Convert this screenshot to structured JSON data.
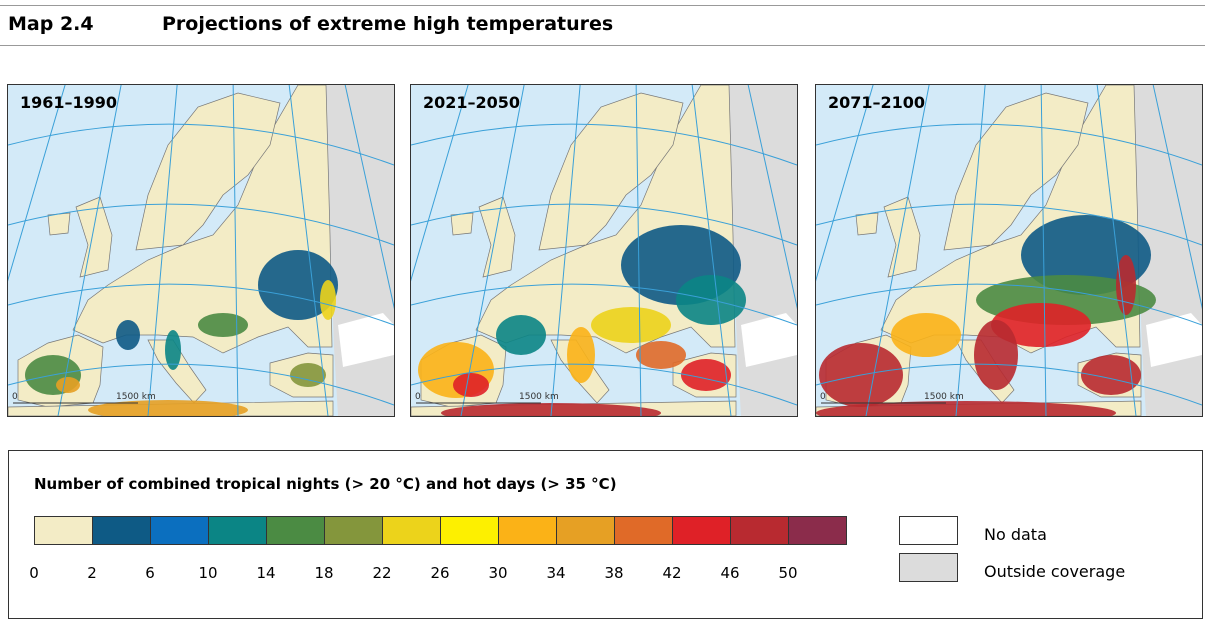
{
  "header": {
    "map_number": "Map 2.4",
    "title": "Projections of extreme high temperatures"
  },
  "maps": [
    {
      "period": "1961–1990",
      "scale_zero": "0",
      "scale_label": "1500 km"
    },
    {
      "period": "2021–2050",
      "scale_zero": "0",
      "scale_label": "1500 km"
    },
    {
      "period": "2071–2100",
      "scale_zero": "0",
      "scale_label": "1500 km"
    }
  ],
  "legend": {
    "title": "Number of combined tropical nights (> 20 °C) and hot days (> 35 °C)",
    "colors": [
      "#f3ecc6",
      "#0e5a85",
      "#0b6fbf",
      "#0b8585",
      "#4b8b43",
      "#84963c",
      "#ecd31b",
      "#fdf000",
      "#fbb217",
      "#e6a024",
      "#e06a28",
      "#df2127",
      "#b82a30",
      "#8b2c4b"
    ],
    "ticks": [
      "0",
      "2",
      "6",
      "10",
      "14",
      "18",
      "22",
      "26",
      "30",
      "34",
      "38",
      "42",
      "46",
      "50"
    ],
    "no_data": {
      "label": "No data",
      "color": "#ffffff"
    },
    "outside": {
      "label": "Outside coverage",
      "color": "#dcdcdc"
    },
    "sea_color": "#d3eaf8"
  }
}
